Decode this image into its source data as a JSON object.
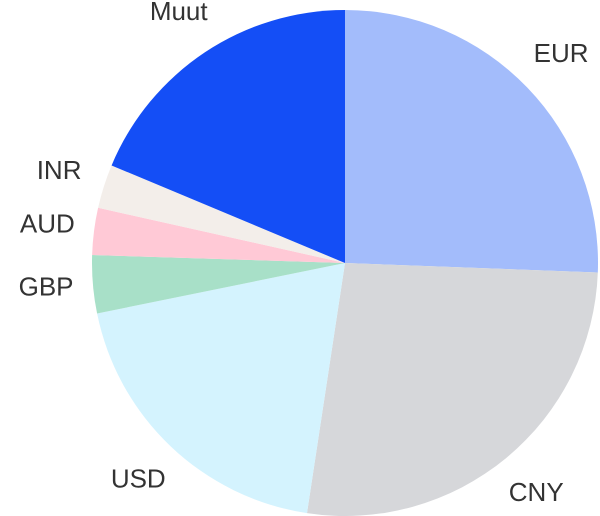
{
  "chart_data": {
    "type": "pie",
    "categories": [
      "EUR",
      "CNY",
      "USD",
      "GBP",
      "AUD",
      "INR",
      "Muut"
    ],
    "values": [
      25.6,
      26.8,
      19.4,
      3.7,
      3.0,
      2.8,
      18.7
    ],
    "colors": [
      "#a3bcfb",
      "#d6d7da",
      "#d4f3fe",
      "#a8e0c8",
      "#ffc9d6",
      "#f3eeea",
      "#144ef6"
    ],
    "start_angle": 0,
    "direction": "clockwise"
  }
}
